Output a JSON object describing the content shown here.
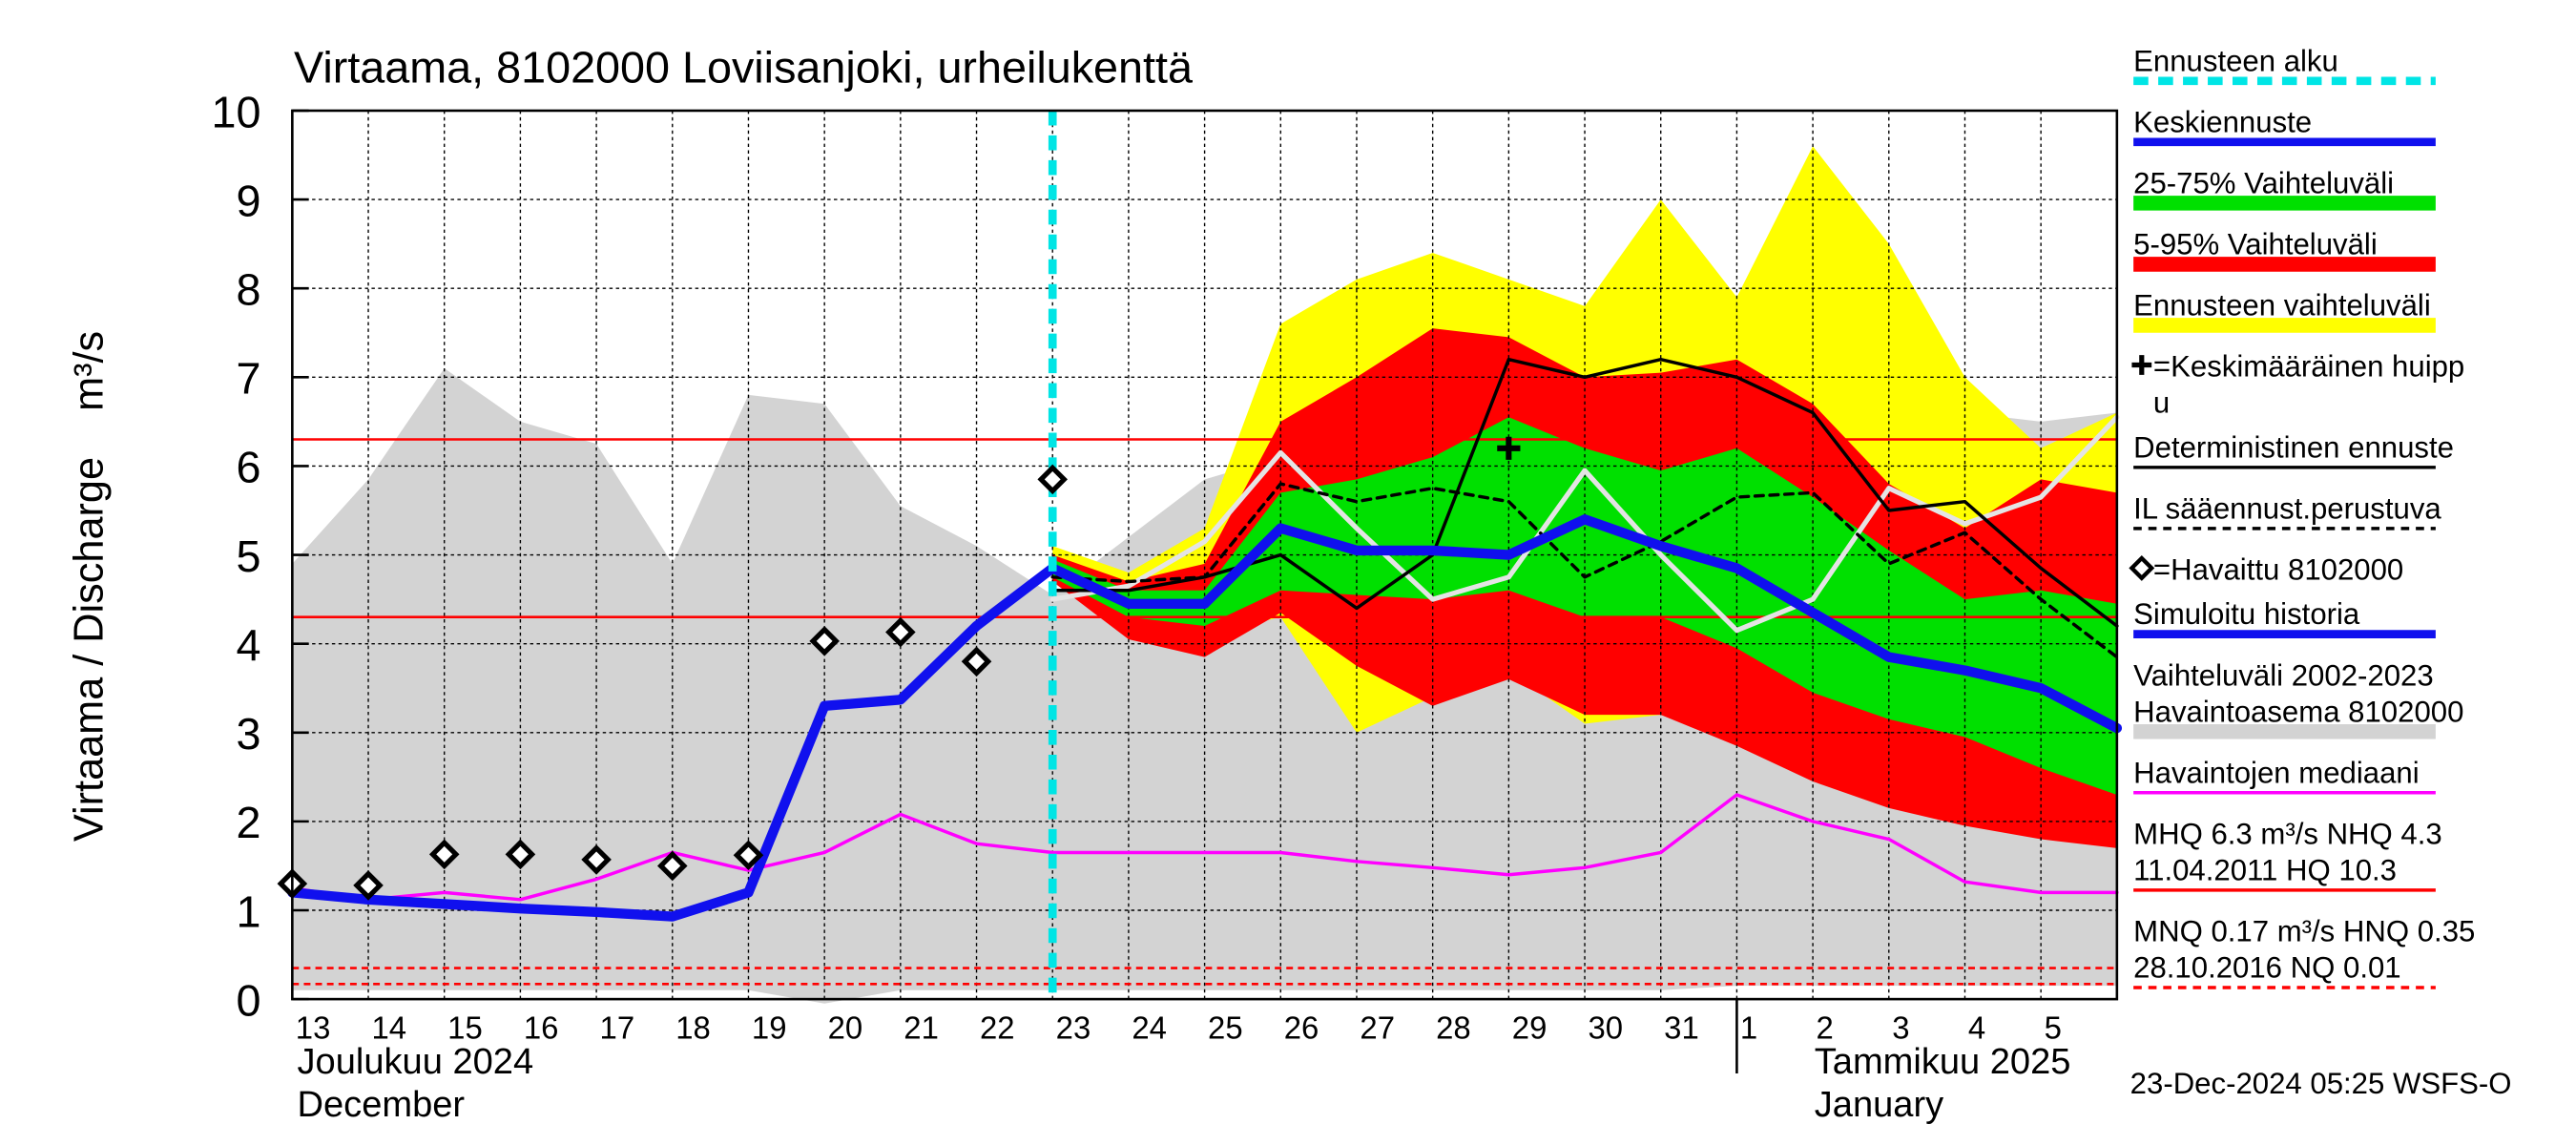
{
  "chart_data": {
    "type": "hydrograph",
    "title": "Virtaama, 8102000 Loviisanjoki, urheilukenttä",
    "ylabel": "Virtaama / Discharge    m³/s",
    "categories": [
      "13",
      "14",
      "15",
      "16",
      "17",
      "18",
      "19",
      "20",
      "21",
      "22",
      "23",
      "24",
      "25",
      "26",
      "27",
      "28",
      "29",
      "30",
      "31",
      "1",
      "2",
      "3",
      "4",
      "5",
      null
    ],
    "months": [
      {
        "lines": [
          "Joulukuu  2024",
          "December"
        ],
        "start": 0
      },
      {
        "lines": [
          "Tammikuu  2025",
          "January"
        ],
        "start": 19
      }
    ],
    "ylim": [
      0,
      10
    ],
    "yticks": [
      0,
      1,
      2,
      3,
      4,
      5,
      6,
      7,
      8,
      9,
      10
    ],
    "grid": true,
    "forecast_start": 10,
    "series": [
      {
        "kind": "band",
        "color": "#d3d3d3",
        "upper": [
          4.9,
          5.85,
          7.1,
          6.5,
          6.25,
          4.9,
          6.8,
          6.7,
          5.55,
          5.1,
          4.55,
          5.2,
          5.85,
          6.1,
          6.2,
          6.3,
          6.4,
          6.5,
          6.6,
          6.8,
          7.0,
          6.8,
          6.6,
          6.5,
          6.6
        ],
        "lower": [
          0.1,
          0.1,
          0.1,
          0.1,
          0.1,
          0.1,
          0.1,
          -0.05,
          0.1,
          0.1,
          0.1,
          0.1,
          0.1,
          0.1,
          0.1,
          0.1,
          0.1,
          0.1,
          0.1,
          0.15,
          0.15,
          0.15,
          0.15,
          0.15,
          0.15
        ]
      },
      {
        "kind": "band",
        "color": "#ffff00",
        "upper": [
          null,
          null,
          null,
          null,
          null,
          null,
          null,
          null,
          null,
          null,
          5.1,
          4.8,
          5.3,
          7.6,
          8.1,
          8.4,
          8.1,
          7.8,
          9.0,
          7.9,
          9.6,
          8.5,
          7.0,
          6.2,
          6.6
        ],
        "lower": [
          null,
          null,
          null,
          null,
          null,
          null,
          null,
          null,
          null,
          null,
          4.7,
          4.1,
          4.1,
          4.3,
          3.0,
          3.4,
          3.7,
          3.1,
          3.2,
          2.9,
          2.5,
          2.2,
          2.0,
          1.85,
          1.7
        ]
      },
      {
        "kind": "band",
        "color": "#ff0000",
        "upper": [
          null,
          null,
          null,
          null,
          null,
          null,
          null,
          null,
          null,
          null,
          5.0,
          4.7,
          4.9,
          6.5,
          7.0,
          7.55,
          7.45,
          7.0,
          7.05,
          7.2,
          6.7,
          5.8,
          5.3,
          5.85,
          5.7
        ],
        "lower": [
          null,
          null,
          null,
          null,
          null,
          null,
          null,
          null,
          null,
          null,
          4.7,
          4.05,
          3.85,
          4.35,
          3.75,
          3.3,
          3.6,
          3.2,
          3.2,
          2.85,
          2.45,
          2.15,
          1.95,
          1.8,
          1.7
        ]
      },
      {
        "kind": "band",
        "color": "#00e000",
        "upper": [
          null,
          null,
          null,
          null,
          null,
          null,
          null,
          null,
          null,
          null,
          4.95,
          4.6,
          4.6,
          5.7,
          5.85,
          6.1,
          6.55,
          6.2,
          5.95,
          6.2,
          5.65,
          5.05,
          4.5,
          4.6,
          4.45
        ],
        "lower": [
          null,
          null,
          null,
          null,
          null,
          null,
          null,
          null,
          null,
          null,
          4.75,
          4.3,
          4.2,
          4.6,
          4.55,
          4.5,
          4.6,
          4.3,
          4.3,
          3.95,
          3.45,
          3.15,
          2.95,
          2.6,
          2.3
        ]
      },
      {
        "kind": "line",
        "color": "#ff00ff",
        "width": 2,
        "values": [
          1.25,
          1.12,
          1.2,
          1.12,
          1.35,
          1.65,
          1.45,
          1.65,
          2.08,
          1.75,
          1.65,
          1.65,
          1.65,
          1.65,
          1.55,
          1.48,
          1.4,
          1.48,
          1.65,
          2.3,
          2.0,
          1.8,
          1.32,
          1.2,
          1.2
        ]
      },
      {
        "kind": "line",
        "color": "#e4e4e4",
        "width": 3,
        "values": [
          null,
          null,
          null,
          null,
          null,
          null,
          null,
          null,
          null,
          null,
          4.5,
          4.65,
          5.15,
          6.15,
          5.3,
          4.5,
          4.75,
          5.95,
          5.0,
          4.15,
          4.5,
          5.75,
          5.35,
          5.65,
          6.55
        ]
      },
      {
        "kind": "line",
        "color": "#000000",
        "width": 2,
        "dashed": true,
        "values": [
          null,
          null,
          null,
          null,
          null,
          null,
          null,
          null,
          null,
          null,
          4.75,
          4.7,
          4.75,
          5.8,
          5.6,
          5.75,
          5.6,
          4.75,
          5.15,
          5.65,
          5.7,
          4.9,
          5.25,
          4.5,
          3.85
        ]
      },
      {
        "kind": "line",
        "color": "#000000",
        "width": 2,
        "values": [
          null,
          null,
          null,
          null,
          null,
          null,
          null,
          null,
          null,
          null,
          4.6,
          4.6,
          4.75,
          5.0,
          4.4,
          5.0,
          7.2,
          7.0,
          7.2,
          7.0,
          6.6,
          5.5,
          5.6,
          4.85,
          4.2
        ]
      },
      {
        "kind": "line",
        "color": "#1010ee",
        "width": 6,
        "values": [
          1.2,
          1.12,
          1.07,
          1.02,
          0.98,
          0.93,
          1.2,
          3.3,
          3.37,
          4.2,
          4.85,
          null,
          null,
          null,
          null,
          null,
          null,
          null,
          null,
          null,
          null,
          null,
          null,
          null,
          null
        ]
      },
      {
        "kind": "line",
        "color": "#1010ee",
        "width": 6,
        "values": [
          null,
          null,
          null,
          null,
          null,
          null,
          null,
          null,
          null,
          null,
          4.85,
          4.45,
          4.45,
          5.3,
          5.05,
          5.05,
          5.0,
          5.4,
          5.1,
          4.85,
          4.35,
          3.85,
          3.7,
          3.5,
          3.05
        ]
      },
      {
        "kind": "diamond",
        "color": "#000000",
        "values": [
          1.3,
          1.28,
          1.63,
          1.63,
          1.57,
          1.5,
          1.62,
          4.03,
          4.13,
          3.8,
          5.85,
          null,
          null,
          null,
          null,
          null,
          null,
          null,
          null,
          null,
          null,
          null,
          null,
          null,
          null
        ]
      },
      {
        "kind": "plus",
        "color": "#000000",
        "values": [
          null,
          null,
          null,
          null,
          null,
          null,
          null,
          null,
          null,
          null,
          null,
          null,
          null,
          null,
          null,
          null,
          6.2,
          null,
          null,
          null,
          null,
          null,
          null,
          null,
          null
        ]
      }
    ],
    "hlines": [
      {
        "value": 6.3,
        "color": "#ff0000",
        "dashed": false
      },
      {
        "value": 4.3,
        "color": "#ff0000",
        "dashed": false
      },
      {
        "value": 0.35,
        "color": "#ff0000",
        "dashed": true
      },
      {
        "value": 0.17,
        "color": "#ff0000",
        "dashed": true
      }
    ],
    "legend": [
      {
        "lines": [
          "Ennusteen alku"
        ],
        "color": "#00e5e5",
        "style": "dashed-thick"
      },
      {
        "lines": [
          "Keskiennuste"
        ],
        "color": "#1010ee",
        "style": "thick"
      },
      {
        "lines": [
          "25-75% Vaihteluväli"
        ],
        "color": "#00e000",
        "style": "band"
      },
      {
        "lines": [
          "5-95% Vaihteluväli"
        ],
        "color": "#ff0000",
        "style": "band"
      },
      {
        "lines": [
          "Ennusteen vaihteluväli"
        ],
        "color": "#ffff00",
        "style": "band"
      },
      {
        "lines": [
          "=Keskimääräinen huipp",
          "u"
        ],
        "icon": "plus"
      },
      {
        "lines": [
          "Deterministinen ennuste"
        ],
        "color": "#000000",
        "style": "line"
      },
      {
        "lines": [
          "IL sääennust.perustuva"
        ],
        "color": "#000000",
        "style": "dashed"
      },
      {
        "lines": [
          "=Havaittu 8102000"
        ],
        "icon": "diamond"
      },
      {
        "lines": [
          "Simuloitu historia"
        ],
        "color": "#1010ee",
        "style": "thick"
      },
      {
        "lines": [
          "Vaihteluväli 2002-2023",
          " Havaintoasema 8102000"
        ],
        "color": "#d3d3d3",
        "style": "band"
      },
      {
        "lines": [
          "Havaintojen mediaani"
        ],
        "color": "#ff00ff",
        "style": "line"
      },
      {
        "lines": [
          "MHQ  6.3 m³/s NHQ  4.3",
          "11.04.2011 HQ 10.3"
        ],
        "color": "#ff0000",
        "style": "line"
      },
      {
        "lines": [
          "MNQ 0.17 m³/s HNQ 0.35",
          "28.10.2016 NQ 0.01"
        ],
        "color": "#ff0000",
        "style": "dashed"
      }
    ],
    "footer": "23-Dec-2024 05:25 WSFS-O"
  }
}
